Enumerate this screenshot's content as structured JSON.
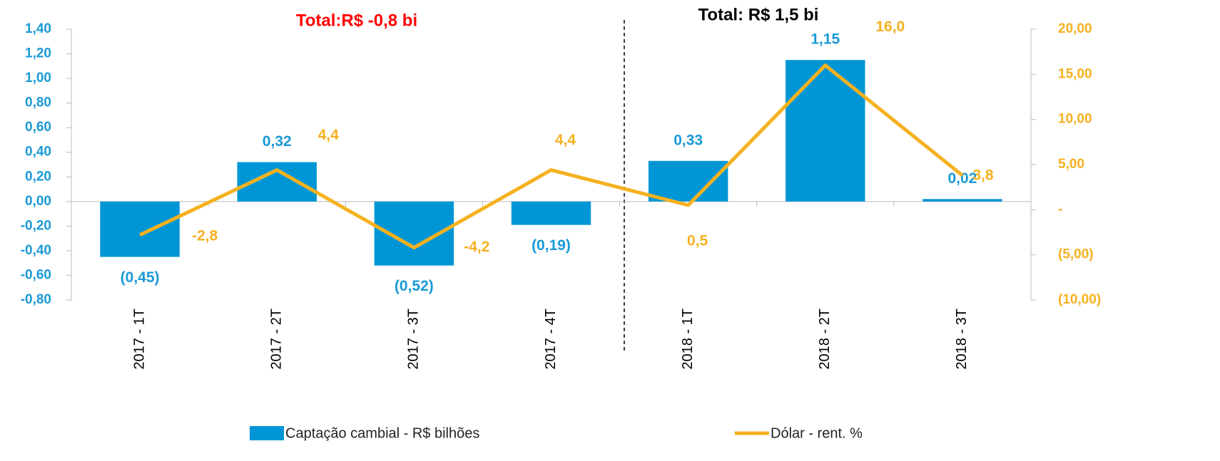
{
  "chart_data": {
    "type": "bar",
    "categories": [
      "2017 - 1T",
      "2017 - 2T",
      "2017 - 3T",
      "2017 - 4T",
      "2018 - 1T",
      "2018 - 2T",
      "2018 - 3T"
    ],
    "series": [
      {
        "name": "Captação cambial - R$ bilhões",
        "type": "bar",
        "color": "#0096d6",
        "values": [
          -0.45,
          0.32,
          -0.52,
          -0.19,
          0.33,
          1.15,
          0.02
        ],
        "value_labels": [
          "(0,45)",
          "0,32",
          "(0,52)",
          "(0,19)",
          "0,33",
          "1,15",
          "0,02"
        ]
      },
      {
        "name": "Dólar - rent. %",
        "type": "line",
        "axis": "y2",
        "color": "#f5b120",
        "values": [
          -2.8,
          4.4,
          -4.2,
          4.4,
          0.5,
          16.0,
          3.8
        ],
        "value_labels": [
          "-2,8",
          "4,4",
          "-4,2",
          "4,4",
          "0,5",
          "16,0",
          "3,8"
        ]
      }
    ],
    "ylim": [
      -0.8,
      1.4
    ],
    "yticks": [
      {
        "value": -0.8,
        "label": "-0,80"
      },
      {
        "value": -0.6,
        "label": "-0,60"
      },
      {
        "value": -0.4,
        "label": "-0,40"
      },
      {
        "value": -0.2,
        "label": "-0,20"
      },
      {
        "value": 0,
        "label": "0,00"
      },
      {
        "value": 0.2,
        "label": "0,20"
      },
      {
        "value": 0.4,
        "label": "0,40"
      },
      {
        "value": 0.6,
        "label": "0,60"
      },
      {
        "value": 0.8,
        "label": "0,80"
      },
      {
        "value": 1.0,
        "label": "1,00"
      },
      {
        "value": 1.2,
        "label": "1,20"
      },
      {
        "value": 1.4,
        "label": "1,40"
      }
    ],
    "y2lim": [
      -10,
      20
    ],
    "y2ticks": [
      {
        "value": -10,
        "label": "(10,00)"
      },
      {
        "value": -5,
        "label": "(5,00)"
      },
      {
        "value": 0,
        "label": "-"
      },
      {
        "value": 5,
        "label": "5,00"
      },
      {
        "value": 10,
        "label": "10,00"
      },
      {
        "value": 15,
        "label": "15,00"
      },
      {
        "value": 20,
        "label": "20,00"
      }
    ],
    "annotations": [
      "Total:R$ -0,8 bi",
      "Total: R$ 1,5 bi"
    ],
    "legend": "bottom"
  }
}
